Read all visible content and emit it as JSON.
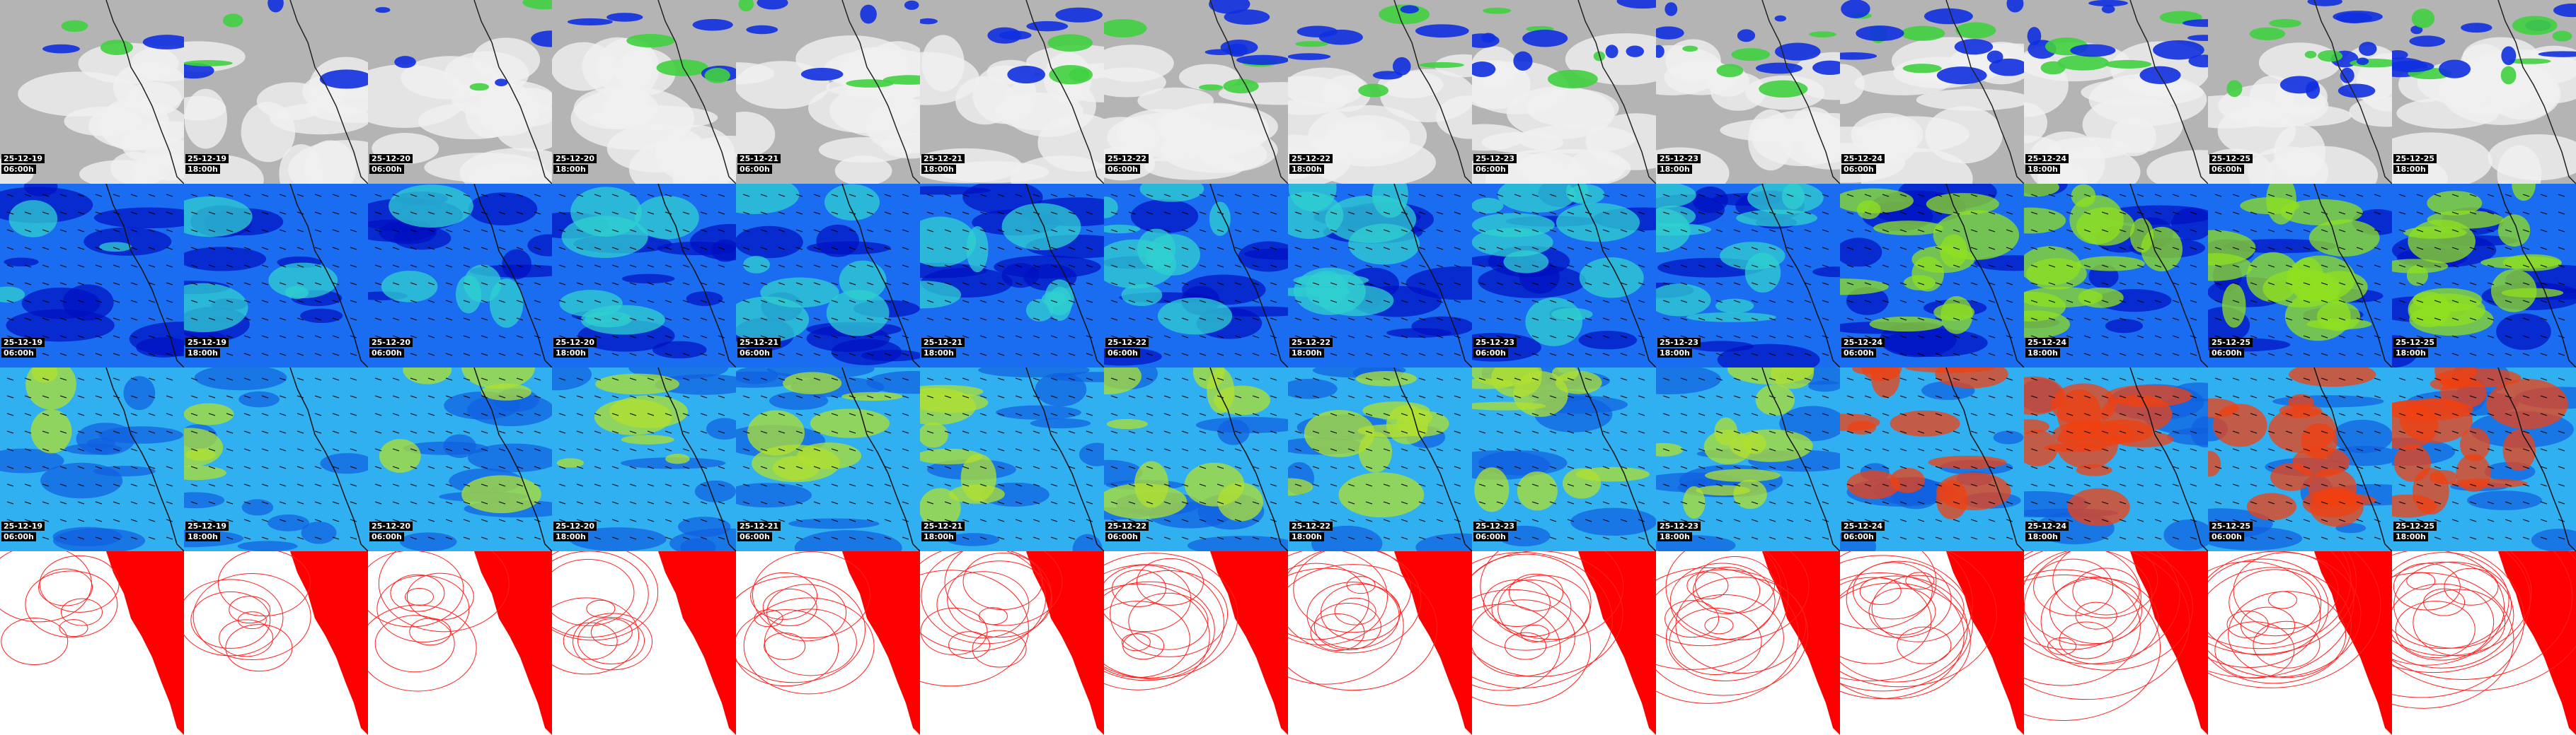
{
  "columns": [
    {
      "date": "25-12-19",
      "time": "06:00h"
    },
    {
      "date": "25-12-19",
      "time": "18:00h"
    },
    {
      "date": "25-12-20",
      "time": "06:00h"
    },
    {
      "date": "25-12-20",
      "time": "18:00h"
    },
    {
      "date": "25-12-21",
      "time": "06:00h"
    },
    {
      "date": "25-12-21",
      "time": "18:00h"
    },
    {
      "date": "25-12-22",
      "time": "06:00h"
    },
    {
      "date": "25-12-22",
      "time": "18:00h"
    },
    {
      "date": "25-12-23",
      "time": "06:00h"
    },
    {
      "date": "25-12-23",
      "time": "18:00h"
    },
    {
      "date": "25-12-24",
      "time": "06:00h"
    },
    {
      "date": "25-12-24",
      "time": "18:00h"
    },
    {
      "date": "25-12-25",
      "time": "06:00h"
    },
    {
      "date": "25-12-25",
      "time": "18:00h"
    }
  ]
}
